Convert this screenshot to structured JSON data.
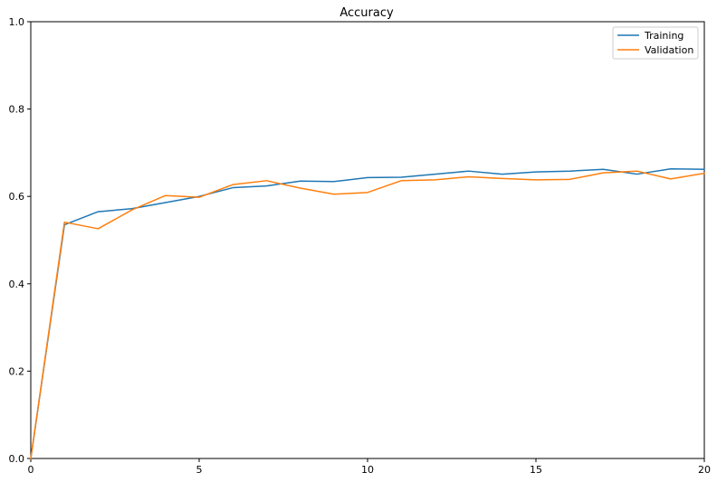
{
  "chart_data": {
    "type": "line",
    "title": "Accuracy",
    "xlabel": "",
    "ylabel": "",
    "xlim": [
      0,
      20
    ],
    "ylim": [
      0,
      1
    ],
    "x_ticks": [
      0,
      5,
      10,
      15,
      20
    ],
    "y_ticks": [
      0.0,
      0.2,
      0.4,
      0.6,
      0.8,
      1.0
    ],
    "x_tick_labels": [
      "0",
      "5",
      "10",
      "15",
      "20"
    ],
    "y_tick_labels": [
      "0.0",
      "0.2",
      "0.4",
      "0.6",
      "0.8",
      "1.0"
    ],
    "grid": false,
    "legend_position": "top-right",
    "x": [
      0,
      1,
      2,
      3,
      4,
      5,
      6,
      7,
      8,
      9,
      10,
      11,
      12,
      13,
      14,
      15,
      16,
      17,
      18,
      19,
      20
    ],
    "series": [
      {
        "name": "Training",
        "color": "#1f77b4",
        "values": [
          0.0,
          0.535,
          0.565,
          0.572,
          0.586,
          0.6,
          0.62,
          0.624,
          0.635,
          0.634,
          0.643,
          0.644,
          0.651,
          0.658,
          0.651,
          0.656,
          0.658,
          0.662,
          0.651,
          0.663,
          0.662
        ]
      },
      {
        "name": "Validation",
        "color": "#ff7f0e",
        "values": [
          0.0,
          0.541,
          0.526,
          0.569,
          0.602,
          0.598,
          0.627,
          0.636,
          0.619,
          0.605,
          0.609,
          0.636,
          0.638,
          0.645,
          0.641,
          0.638,
          0.639,
          0.654,
          0.658,
          0.64,
          0.653
        ]
      }
    ]
  }
}
